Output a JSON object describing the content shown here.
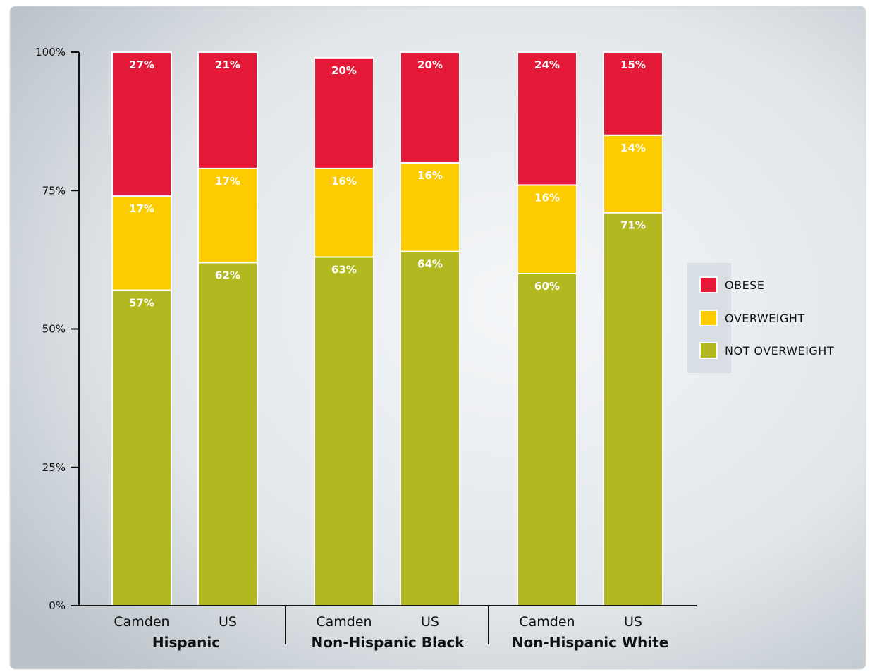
{
  "chart_data": {
    "type": "bar",
    "stacked": true,
    "title": "",
    "xlabel": "",
    "ylabel": "",
    "ylim": [
      0,
      100
    ],
    "y_ticks": [
      "0%",
      "25%",
      "50%",
      "75%",
      "100%"
    ],
    "y_tick_values": [
      0,
      25,
      50,
      75,
      100
    ],
    "groups": [
      "Hispanic",
      "Non-Hispanic Black",
      "Non-Hispanic White"
    ],
    "categories": [
      "Camden",
      "US",
      "Camden",
      "US",
      "Camden",
      "US"
    ],
    "category_group": [
      0,
      0,
      1,
      1,
      2,
      2
    ],
    "series": [
      {
        "name": "NOT OVERWEIGHT",
        "color": "#b2b820",
        "values": [
          57,
          62,
          63,
          64,
          60,
          71
        ],
        "labels": [
          "57%",
          "62%",
          "63%",
          "64%",
          "60%",
          "71%"
        ]
      },
      {
        "name": "OVERWEIGHT",
        "color": "#fccb00",
        "values": [
          17,
          17,
          16,
          16,
          16,
          14
        ],
        "labels": [
          "17%",
          "17%",
          "16%",
          "16%",
          "16%",
          "14%"
        ]
      },
      {
        "name": "OBESE",
        "color": "#e31937",
        "values": [
          27,
          21,
          20,
          20,
          24,
          15
        ],
        "labels": [
          "27%",
          "21%",
          "20%",
          "20%",
          "24%",
          "15%"
        ]
      }
    ],
    "legend": {
      "position": "right",
      "order": [
        "OBESE",
        "OVERWEIGHT",
        "NOT OVERWEIGHT"
      ]
    },
    "grid": false
  }
}
